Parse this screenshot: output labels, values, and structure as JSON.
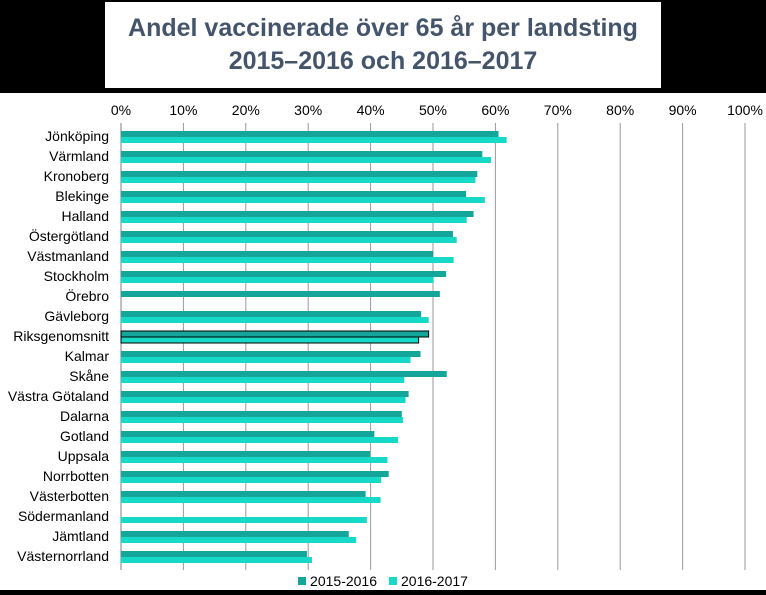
{
  "chart_data": {
    "type": "bar",
    "orientation": "horizontal",
    "title_lines": [
      "Andel vaccinerade över 65 år per landsting",
      "2015–2016 och 2016–2017"
    ],
    "xlim": [
      0,
      100
    ],
    "x_ticks": [
      "0%",
      "10%",
      "20%",
      "30%",
      "40%",
      "50%",
      "60%",
      "70%",
      "80%",
      "90%",
      "100%"
    ],
    "grid": "vertical",
    "legend_position": "bottom",
    "categories": [
      "Jönköping",
      "Värmland",
      "Kronoberg",
      "Blekinge",
      "Halland",
      "Östergötland",
      "Västmanland",
      "Stockholm",
      "Örebro",
      "Gävleborg",
      "Riksgenomsnitt",
      "Kalmar",
      "Skåne",
      "Västra Götaland",
      "Dalarna",
      "Gotland",
      "Uppsala",
      "Norrbotten",
      "Västerbotten",
      "Södermanland",
      "Jämtland",
      "Västernorrland"
    ],
    "highlight_category": "Riksgenomsnitt",
    "series": [
      {
        "name": "2015-2016",
        "color": "#14a69a",
        "values": [
          60.5,
          57.9,
          57.1,
          55.3,
          56.5,
          53.2,
          50.0,
          52.1,
          51.1,
          48.1,
          49.3,
          48.0,
          52.2,
          46.1,
          45.0,
          40.6,
          39.9,
          42.9,
          39.2,
          0,
          36.5,
          29.8
        ]
      },
      {
        "name": "2016-2017",
        "color": "#16d9c8",
        "values": [
          61.8,
          59.3,
          56.8,
          58.3,
          55.4,
          53.8,
          53.3,
          50.1,
          0,
          49.3,
          47.7,
          46.4,
          45.4,
          45.6,
          45.2,
          44.4,
          42.7,
          41.7,
          41.6,
          39.4,
          37.7,
          30.6
        ]
      }
    ]
  }
}
